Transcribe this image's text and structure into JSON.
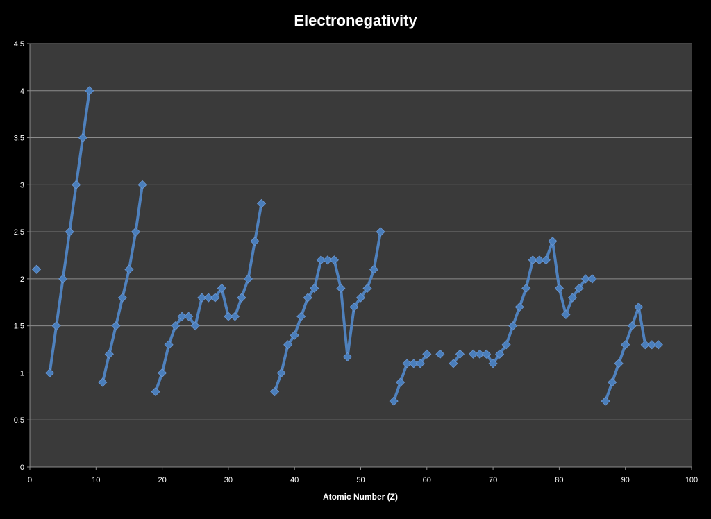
{
  "chart_data": {
    "type": "line",
    "title": "Electronegativity",
    "xlabel": "Atomic Number (Z)",
    "ylabel": "",
    "xlim": [
      0,
      100
    ],
    "ylim": [
      0,
      4.5
    ],
    "x_ticks": [
      0,
      10,
      20,
      30,
      40,
      50,
      60,
      70,
      80,
      90,
      100
    ],
    "y_ticks": [
      0,
      0.5,
      1,
      1.5,
      2,
      2.5,
      3,
      3.5,
      4,
      4.5
    ],
    "grid": "horizontal",
    "legend": "none",
    "series": [
      {
        "color": "#4f81bd",
        "marker_color": "#4a7ebb",
        "points": [
          [
            1,
            2.1
          ],
          [
            3,
            1.0
          ],
          [
            4,
            1.5
          ],
          [
            5,
            2.0
          ],
          [
            6,
            2.5
          ],
          [
            7,
            3.0
          ],
          [
            8,
            3.5
          ],
          [
            9,
            4.0
          ],
          [
            11,
            0.9
          ],
          [
            12,
            1.2
          ],
          [
            13,
            1.5
          ],
          [
            14,
            1.8
          ],
          [
            15,
            2.1
          ],
          [
            16,
            2.5
          ],
          [
            17,
            3.0
          ],
          [
            19,
            0.8
          ],
          [
            20,
            1.0
          ],
          [
            21,
            1.3
          ],
          [
            22,
            1.5
          ],
          [
            23,
            1.6
          ],
          [
            24,
            1.6
          ],
          [
            25,
            1.5
          ],
          [
            26,
            1.8
          ],
          [
            27,
            1.8
          ],
          [
            28,
            1.8
          ],
          [
            29,
            1.9
          ],
          [
            30,
            1.6
          ],
          [
            31,
            1.6
          ],
          [
            32,
            1.8
          ],
          [
            33,
            2.0
          ],
          [
            34,
            2.4
          ],
          [
            35,
            2.8
          ],
          [
            37,
            0.8
          ],
          [
            38,
            1.0
          ],
          [
            39,
            1.3
          ],
          [
            40,
            1.4
          ],
          [
            41,
            1.6
          ],
          [
            42,
            1.8
          ],
          [
            43,
            1.9
          ],
          [
            44,
            2.2
          ],
          [
            45,
            2.2
          ],
          [
            46,
            2.2
          ],
          [
            47,
            1.9
          ],
          [
            48,
            1.17
          ],
          [
            49,
            1.7
          ],
          [
            50,
            1.8
          ],
          [
            51,
            1.9
          ],
          [
            52,
            2.1
          ],
          [
            53,
            2.5
          ],
          [
            55,
            0.7
          ],
          [
            56,
            0.9
          ],
          [
            57,
            1.1
          ],
          [
            58,
            1.1
          ],
          [
            59,
            1.1
          ],
          [
            60,
            1.2
          ],
          [
            62,
            1.2
          ],
          [
            64,
            1.1
          ],
          [
            65,
            1.2
          ],
          [
            67,
            1.2
          ],
          [
            68,
            1.2
          ],
          [
            69,
            1.2
          ],
          [
            70,
            1.1
          ],
          [
            71,
            1.2
          ],
          [
            72,
            1.3
          ],
          [
            73,
            1.5
          ],
          [
            74,
            1.7
          ],
          [
            75,
            1.9
          ],
          [
            76,
            2.2
          ],
          [
            77,
            2.2
          ],
          [
            78,
            2.2
          ],
          [
            79,
            2.4
          ],
          [
            80,
            1.9
          ],
          [
            81,
            1.62
          ],
          [
            82,
            1.8
          ],
          [
            83,
            1.9
          ],
          [
            84,
            2.0
          ],
          [
            85,
            2.0
          ],
          [
            87,
            0.7
          ],
          [
            88,
            0.9
          ],
          [
            89,
            1.1
          ],
          [
            90,
            1.3
          ],
          [
            91,
            1.5
          ],
          [
            92,
            1.7
          ],
          [
            93,
            1.3
          ],
          [
            94,
            1.3
          ],
          [
            95,
            1.3
          ]
        ]
      }
    ]
  }
}
